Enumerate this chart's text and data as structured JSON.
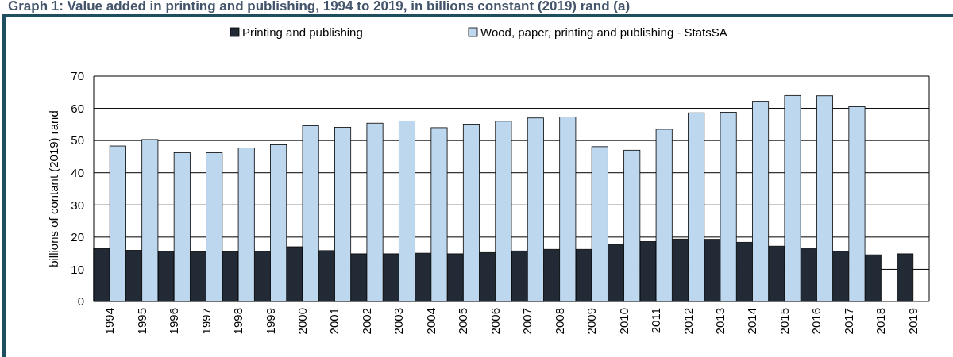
{
  "chart_data": {
    "type": "bar",
    "title": "Graph 1: Value added in printing and publishing, 1994 to 2019, in billions constant (2019) rand (a)",
    "ylabel": "billions of contant (2019) rand",
    "categories": [
      "1994",
      "1995",
      "1996",
      "1997",
      "1998",
      "1999",
      "2000",
      "2001",
      "2002",
      "2003",
      "2004",
      "2005",
      "2006",
      "2007",
      "2008",
      "2009",
      "2010",
      "2011",
      "2012",
      "2013",
      "2014",
      "2015",
      "2016",
      "2017",
      "2018",
      "2019"
    ],
    "series": [
      {
        "name": "Printing and publishing",
        "color": "#222a35",
        "values": [
          16.4,
          15.9,
          15.6,
          15.4,
          15.5,
          15.6,
          17.0,
          15.8,
          14.8,
          14.8,
          15.0,
          14.8,
          15.2,
          15.7,
          16.2,
          16.2,
          17.7,
          18.6,
          19.4,
          19.3,
          18.4,
          17.2,
          16.6,
          15.6,
          14.5,
          14.8
        ]
      },
      {
        "name": "Wood, paper, printing and publishing - StatsSA",
        "color": "#bdd7ee",
        "values": [
          48.3,
          50.3,
          46.2,
          46.2,
          47.7,
          48.7,
          54.6,
          54.1,
          55.4,
          56.1,
          54.0,
          55.1,
          56.0,
          57.0,
          57.3,
          48.1,
          47.0,
          53.5,
          58.6,
          58.8,
          62.2,
          64.0,
          63.9,
          60.5,
          null,
          null
        ]
      }
    ],
    "ylim": [
      0,
      70
    ],
    "yticks": [
      0,
      10,
      20,
      30,
      40,
      50,
      60,
      70
    ],
    "grid": "y",
    "legend": "top"
  }
}
